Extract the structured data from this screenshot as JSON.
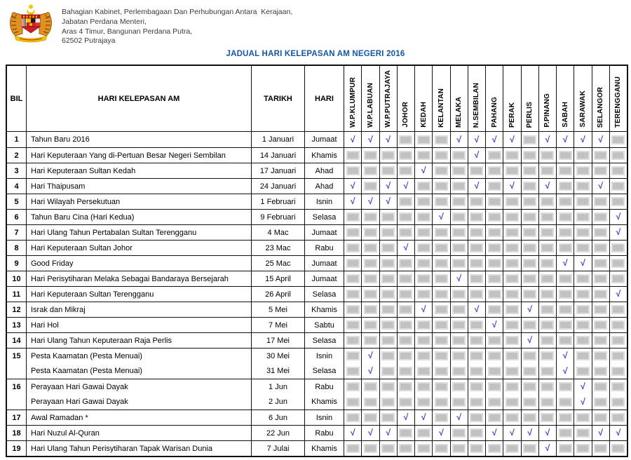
{
  "page": {
    "org_lines": [
      "Bahagian Kabinet, Perlembagaan Dan Perhubungan Antara  Kerajaan,",
      "Jabatan Perdana Menteri,",
      "Aras 4 Timur, Bangunan Perdana Putra,",
      "62502 Putrajaya"
    ],
    "title": "JADUAL HARI KELEPASAN AM NEGERI 2016",
    "title_color": "#1457a0",
    "check_color": "#3d3dcd",
    "check_glyph": "√",
    "logo_icon": "malaysia-coat-of-arms"
  },
  "table": {
    "headers": {
      "bil": "BIL",
      "holiday": "HARI KELEPASAN AM",
      "date": "TARIKH",
      "day": "HARI"
    },
    "states": [
      "W.P.KLUMPUR",
      "W.P.LABUAN",
      "W.P.PUTRAJAYA",
      "JOHOR",
      "KEDAH",
      "KELANTAN",
      "MELAKA",
      "N.SEMBILAN",
      "PAHANG",
      "PERAK",
      "PERLIS",
      "P.PINANG",
      "SABAH",
      "SARAWAK",
      "SELANGOR",
      "TERENGGANU"
    ],
    "rows": [
      {
        "bil": "1",
        "holiday": "Tahun Baru 2016",
        "date": "1 Januari",
        "day": "Jumaat",
        "checks": [
          1,
          1,
          1,
          0,
          0,
          0,
          1,
          1,
          1,
          1,
          0,
          1,
          1,
          1,
          1,
          0
        ]
      },
      {
        "bil": "2",
        "holiday": "Hari Keputeraan Yang di-Pertuan Besar Negeri Sembilan",
        "date": "14 Januari",
        "day": "Khamis",
        "checks": [
          0,
          0,
          0,
          0,
          0,
          0,
          0,
          1,
          0,
          0,
          0,
          0,
          0,
          0,
          0,
          0
        ]
      },
      {
        "bil": "3",
        "holiday": "Hari Keputeraan Sultan Kedah",
        "date": "17 Januari",
        "day": "Ahad",
        "checks": [
          0,
          0,
          0,
          0,
          1,
          0,
          0,
          0,
          0,
          0,
          0,
          0,
          0,
          0,
          0,
          0
        ]
      },
      {
        "bil": "4",
        "holiday": "Hari Thaipusam",
        "date": "24 Januari",
        "day": "Ahad",
        "checks": [
          1,
          0,
          1,
          1,
          0,
          0,
          0,
          1,
          0,
          1,
          0,
          1,
          0,
          0,
          1,
          0
        ]
      },
      {
        "bil": "5",
        "holiday": "Hari Wilayah Persekutuan",
        "date": "1 Februari",
        "day": "Isnin",
        "checks": [
          1,
          1,
          1,
          0,
          0,
          0,
          0,
          0,
          0,
          0,
          0,
          0,
          0,
          0,
          0,
          0
        ]
      },
      {
        "bil": "6",
        "holiday": "Tahun Baru Cina (Hari Kedua)",
        "date": "9 Februari",
        "day": "Selasa",
        "checks": [
          0,
          0,
          0,
          0,
          0,
          1,
          0,
          0,
          0,
          0,
          0,
          0,
          0,
          0,
          0,
          1
        ]
      },
      {
        "bil": "7",
        "holiday": "Hari Ulang Tahun Pertabalan Sultan Terengganu",
        "date": "4 Mac",
        "day": "Jumaat",
        "checks": [
          0,
          0,
          0,
          0,
          0,
          0,
          0,
          0,
          0,
          0,
          0,
          0,
          0,
          0,
          0,
          1
        ]
      },
      {
        "bil": "8",
        "holiday": "Hari Keputeraan Sultan Johor",
        "date": "23 Mac",
        "day": "Rabu",
        "checks": [
          0,
          0,
          0,
          1,
          0,
          0,
          0,
          0,
          0,
          0,
          0,
          0,
          0,
          0,
          0,
          0
        ]
      },
      {
        "bil": "9",
        "holiday": "Good Friday",
        "date": "25 Mac",
        "day": "Jumaat",
        "checks": [
          0,
          0,
          0,
          0,
          0,
          0,
          0,
          0,
          0,
          0,
          0,
          0,
          1,
          1,
          0,
          0
        ]
      },
      {
        "bil": "10",
        "holiday": "Hari Perisytiharan Melaka Sebagai Bandaraya Bersejarah",
        "date": "15 April",
        "day": "Jumaat",
        "checks": [
          0,
          0,
          0,
          0,
          0,
          0,
          1,
          0,
          0,
          0,
          0,
          0,
          0,
          0,
          0,
          0
        ]
      },
      {
        "bil": "11",
        "holiday": "Hari Keputeraan Sultan Terengganu",
        "date": "26 April",
        "day": "Selasa",
        "checks": [
          0,
          0,
          0,
          0,
          0,
          0,
          0,
          0,
          0,
          0,
          0,
          0,
          0,
          0,
          0,
          1
        ]
      },
      {
        "bil": "12",
        "holiday": "Israk dan Mikraj",
        "date": "5 Mei",
        "day": "Khamis",
        "checks": [
          0,
          0,
          0,
          0,
          1,
          0,
          0,
          1,
          0,
          0,
          1,
          0,
          0,
          0,
          0,
          0
        ]
      },
      {
        "bil": "13",
        "holiday": "Hari Hol",
        "date": "7 Mei",
        "day": "Sabtu",
        "checks": [
          0,
          0,
          0,
          0,
          0,
          0,
          0,
          0,
          1,
          0,
          0,
          0,
          0,
          0,
          0,
          0
        ]
      },
      {
        "bil": "14",
        "holiday": "Hari Ulang Tahun Keputeraan Raja Perlis",
        "date": "17 Mei",
        "day": "Selasa",
        "checks": [
          0,
          0,
          0,
          0,
          0,
          0,
          0,
          0,
          0,
          0,
          1,
          0,
          0,
          0,
          0,
          0
        ]
      },
      {
        "bil": "15",
        "holiday": "Pesta Kaamatan (Pesta Menuai)",
        "date": "30 Mei",
        "day": "Isnin",
        "checks": [
          0,
          1,
          0,
          0,
          0,
          0,
          0,
          0,
          0,
          0,
          0,
          0,
          1,
          0,
          0,
          0
        ]
      },
      {
        "bil": "",
        "holiday": "Pesta Kaamatan (Pesta Menuai)",
        "date": "31 Mei",
        "day": "Selasa",
        "checks": [
          0,
          1,
          0,
          0,
          0,
          0,
          0,
          0,
          0,
          0,
          0,
          0,
          1,
          0,
          0,
          0
        ],
        "sub": true
      },
      {
        "bil": "16",
        "holiday": "Perayaan Hari Gawai Dayak",
        "date": "1 Jun",
        "day": "Rabu",
        "checks": [
          0,
          0,
          0,
          0,
          0,
          0,
          0,
          0,
          0,
          0,
          0,
          0,
          0,
          1,
          0,
          0
        ]
      },
      {
        "bil": "",
        "holiday": "Perayaan Hari Gawai Dayak",
        "date": "2 Jun",
        "day": "Khamis",
        "checks": [
          0,
          0,
          0,
          0,
          0,
          0,
          0,
          0,
          0,
          0,
          0,
          0,
          0,
          1,
          0,
          0
        ],
        "sub": true
      },
      {
        "bil": "17",
        "holiday": "Awal Ramadan *",
        "date": "6 Jun",
        "day": "Isnin",
        "checks": [
          0,
          0,
          0,
          1,
          1,
          0,
          1,
          0,
          0,
          0,
          0,
          0,
          0,
          0,
          0,
          0
        ]
      },
      {
        "bil": "18",
        "holiday": "Hari Nuzul Al-Quran",
        "date": "22 Jun",
        "day": "Rabu",
        "checks": [
          1,
          1,
          1,
          0,
          0,
          1,
          0,
          0,
          1,
          1,
          1,
          1,
          0,
          0,
          1,
          1
        ]
      },
      {
        "bil": "19",
        "holiday": "Hari Ulang Tahun Perisytiharan Tapak Warisan Dunia",
        "date": "7 Julai",
        "day": "Khamis",
        "checks": [
          0,
          0,
          0,
          0,
          0,
          0,
          0,
          0,
          0,
          0,
          0,
          1,
          0,
          0,
          0,
          0
        ]
      }
    ]
  }
}
